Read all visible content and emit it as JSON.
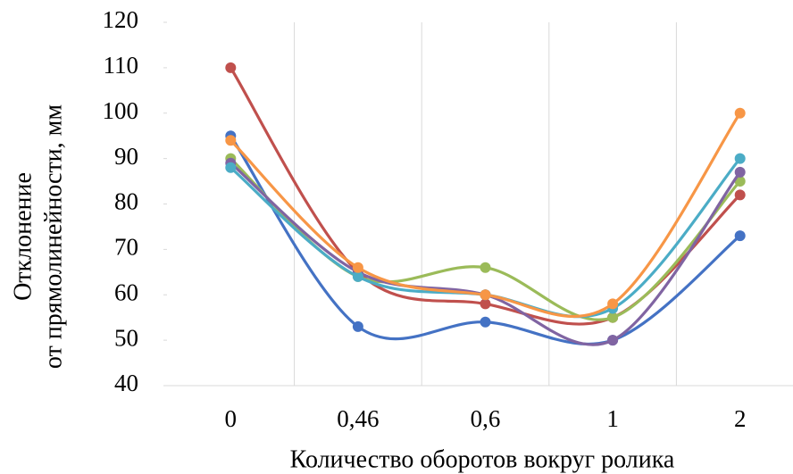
{
  "chart_data": {
    "type": "line",
    "x_label": "Количество оборотов вокруг ролика",
    "y_label": [
      "Отклонение",
      "от прямолинейности, мм"
    ],
    "categories": [
      "0",
      "0,46",
      "0,6",
      "1",
      "2"
    ],
    "series": [
      {
        "color": "#4472c4",
        "values": [
          95,
          53,
          54,
          50,
          73
        ]
      },
      {
        "color": "#c0504d",
        "values": [
          110,
          65,
          58,
          55,
          82
        ]
      },
      {
        "color": "#9bbb59",
        "values": [
          90,
          64,
          66,
          55,
          85
        ]
      },
      {
        "color": "#8064a2",
        "values": [
          89,
          65,
          60,
          50,
          87
        ]
      },
      {
        "color": "#4bacc6",
        "values": [
          88,
          64,
          60,
          57,
          90
        ]
      },
      {
        "color": "#f79646",
        "values": [
          94,
          66,
          60,
          58,
          100
        ]
      }
    ],
    "ylim": [
      40,
      120
    ],
    "yticks": [
      40,
      50,
      60,
      70,
      80,
      90,
      100,
      110,
      120
    ],
    "smooth": true
  }
}
